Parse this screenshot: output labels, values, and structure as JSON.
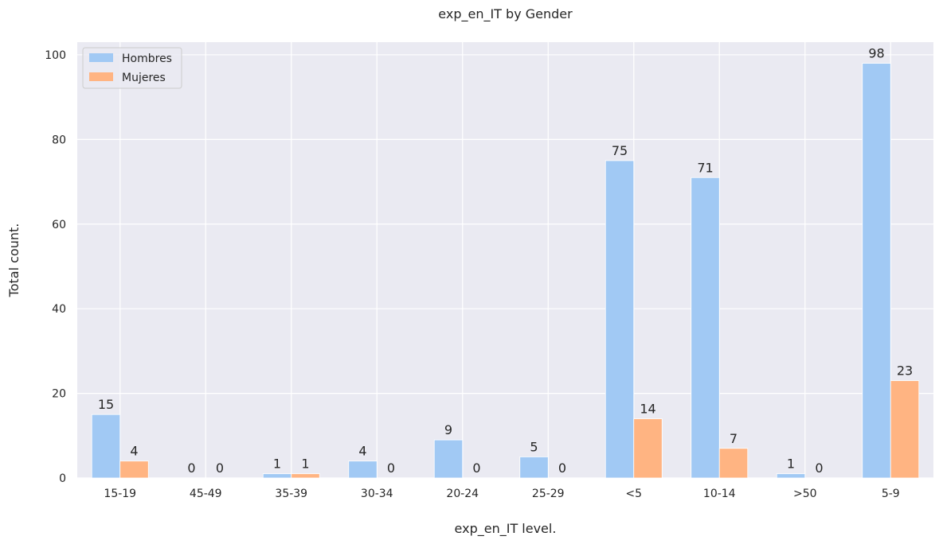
{
  "chart_data": {
    "type": "bar",
    "title": "exp_en_IT by Gender",
    "xlabel": "exp_en_IT level.",
    "ylabel": "Total count.",
    "categories": [
      "15-19",
      "45-49",
      "35-39",
      "30-34",
      "20-24",
      "25-29",
      "<5",
      "10-14",
      ">50",
      "5-9"
    ],
    "series": [
      {
        "name": "Hombres",
        "color": "#a1c9f4",
        "values": [
          15,
          0,
          1,
          4,
          9,
          5,
          75,
          71,
          1,
          98
        ]
      },
      {
        "name": "Mujeres",
        "color": "#ffb482",
        "values": [
          4,
          0,
          1,
          0,
          0,
          0,
          14,
          7,
          0,
          23
        ]
      }
    ],
    "ylim": [
      0,
      103
    ],
    "yticks": [
      0,
      20,
      40,
      60,
      80,
      100
    ],
    "grid": true,
    "legend_position": "top-left",
    "background_color": "#eaeaf2"
  }
}
